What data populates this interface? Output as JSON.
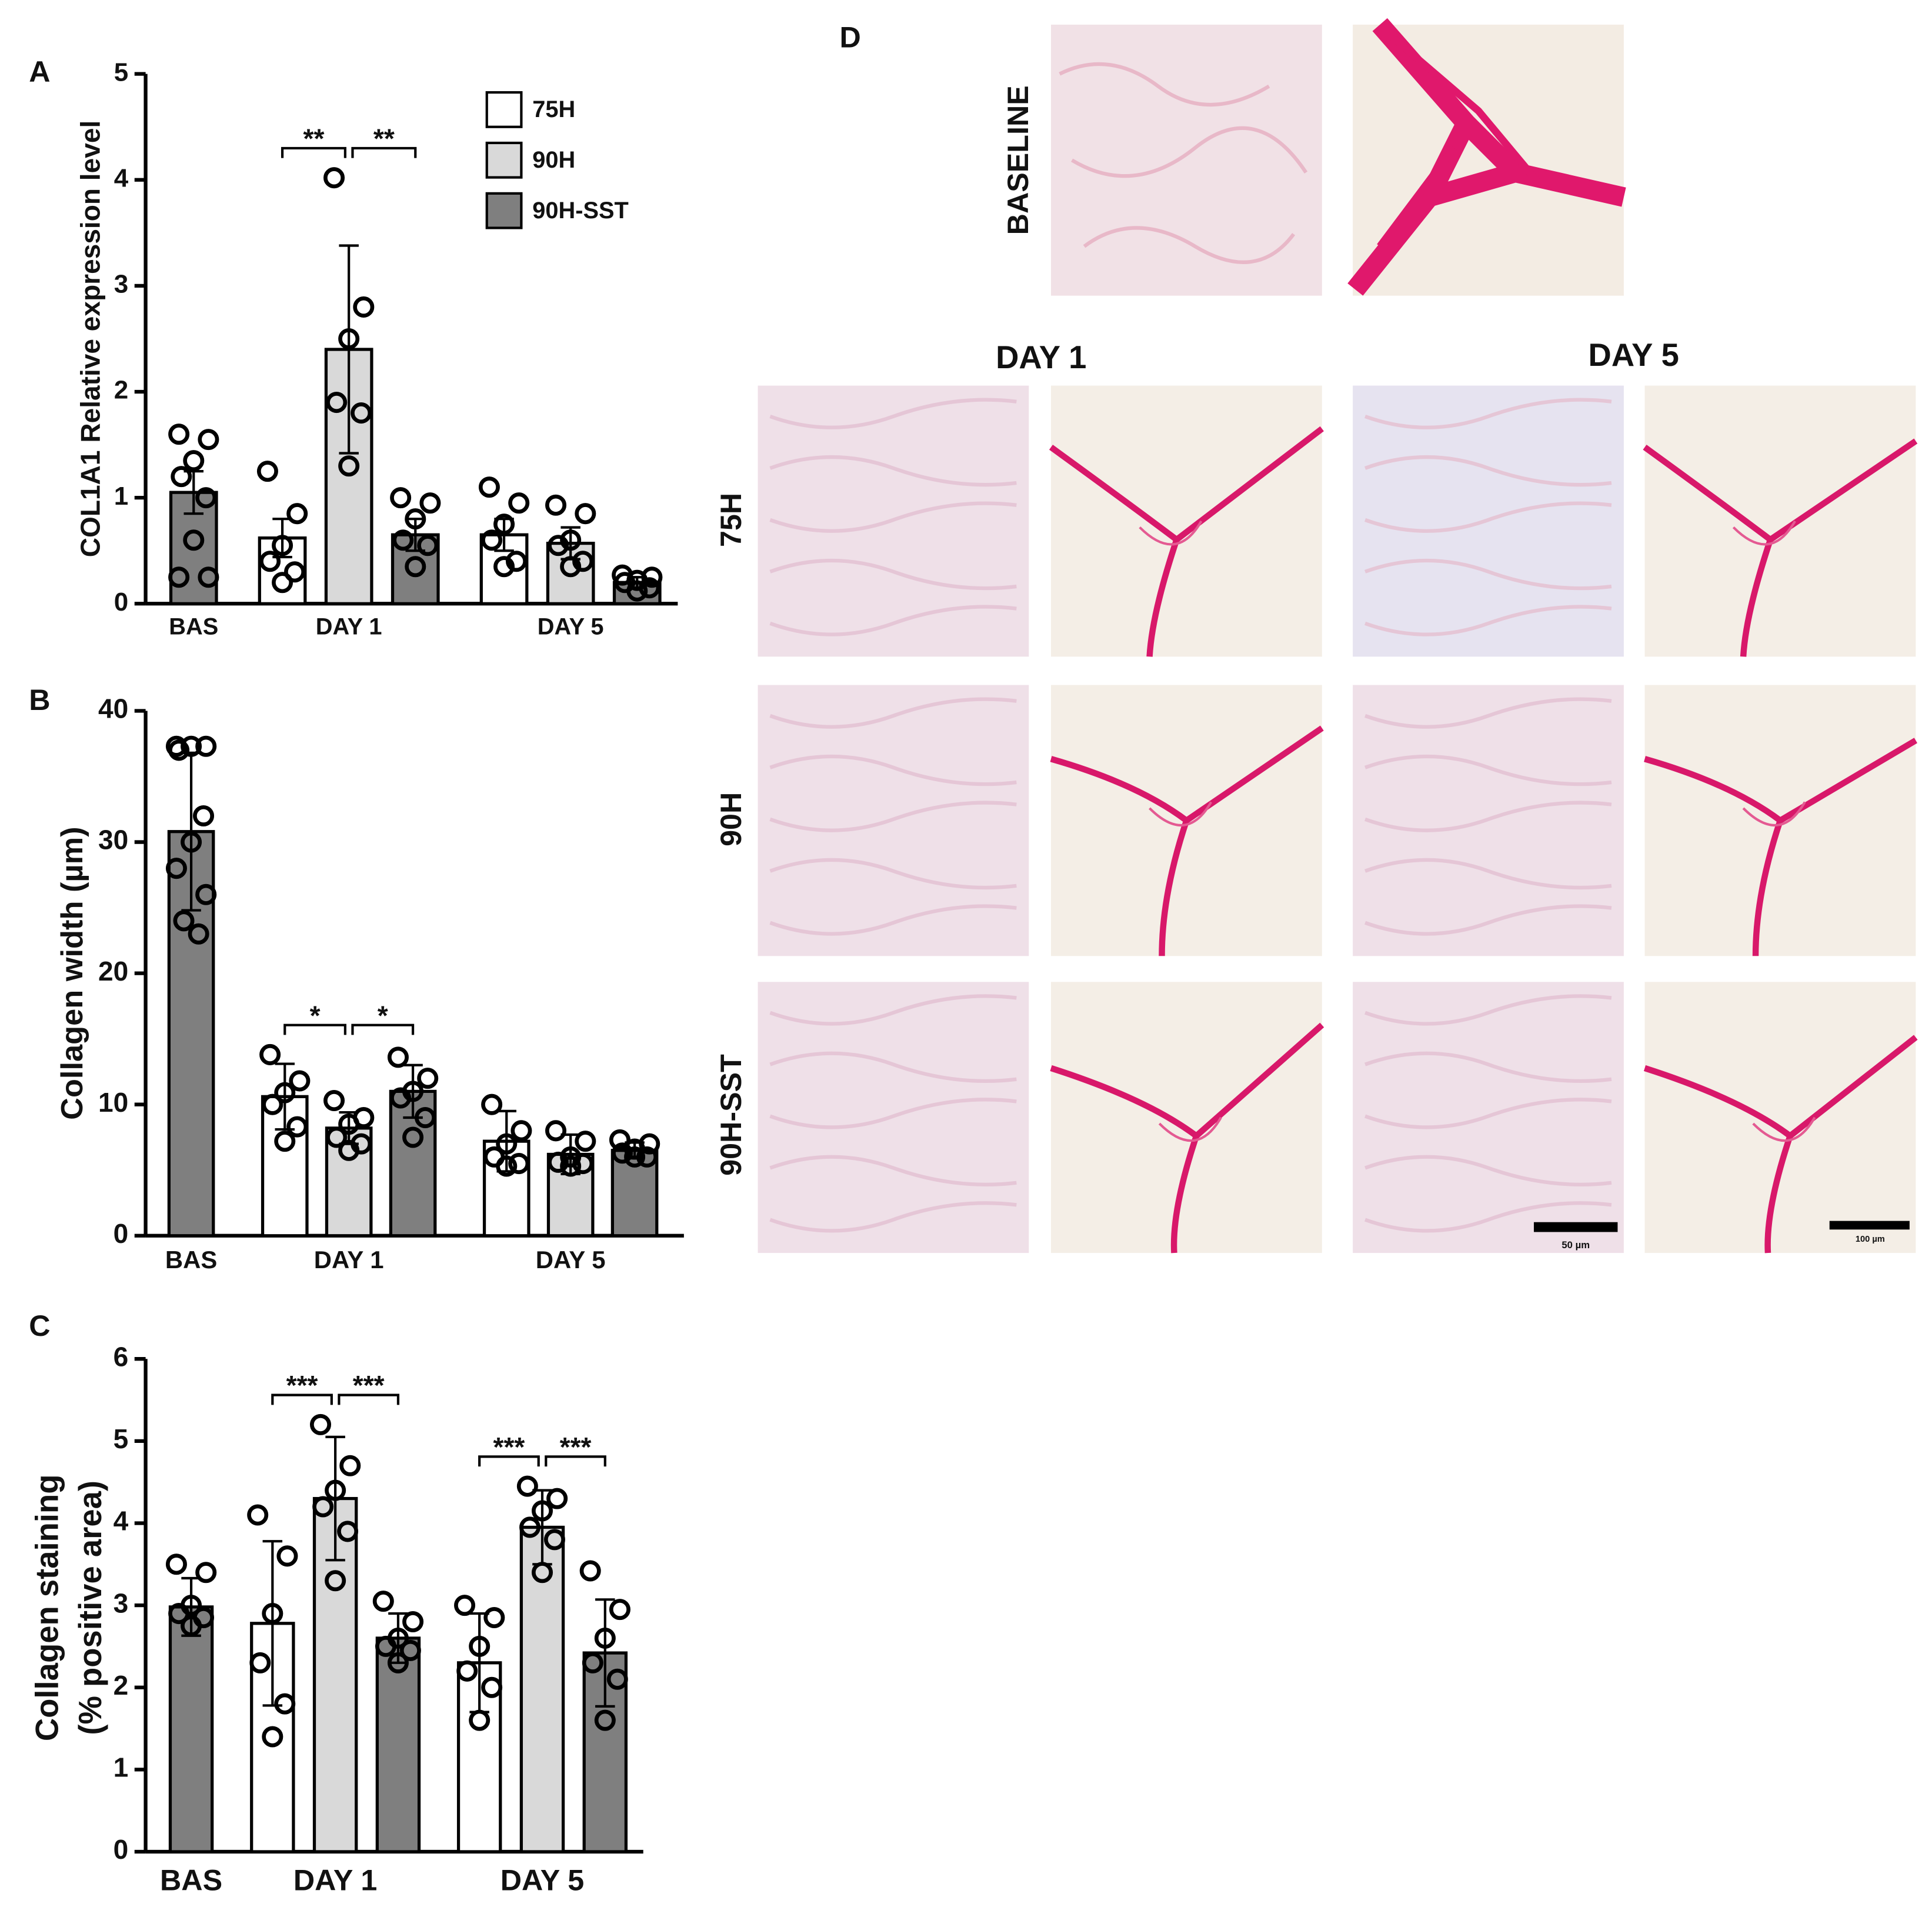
{
  "chart_data": [
    {
      "type": "bar",
      "panel": "A",
      "ylabel": [
        "COL1A1 Relative expression level"
      ],
      "categories": [
        "BAS",
        "DAY 1",
        "DAY 5"
      ],
      "ylim": [
        0,
        5
      ],
      "yticks": [
        0,
        1,
        2,
        3,
        4,
        5
      ],
      "legend": true,
      "series": [
        {
          "name": "75H",
          "color": "#ffffff",
          "values": [
            null,
            0.62,
            0.65
          ],
          "errors": [
            null,
            0.18,
            0.15
          ],
          "points": [
            null,
            [
              1.25,
              0.85,
              0.55,
              0.4,
              0.3,
              0.2
            ],
            [
              1.1,
              0.95,
              0.75,
              0.6,
              0.4,
              0.35
            ]
          ]
        },
        {
          "name": "90H",
          "color": "#d9d9d9",
          "values": [
            null,
            2.4,
            0.57
          ],
          "errors": [
            null,
            0.98,
            0.15
          ],
          "points": [
            null,
            [
              4.02,
              2.8,
              2.5,
              1.9,
              1.8,
              1.3
            ],
            [
              0.93,
              0.85,
              0.6,
              0.55,
              0.4,
              0.35
            ]
          ]
        },
        {
          "name": "90H-SST",
          "color": "#7f7f7f",
          "values": [
            1.05,
            0.65,
            0.2
          ],
          "errors": [
            0.2,
            0.15,
            0.05
          ],
          "points": [
            [
              1.6,
              1.55,
              1.35,
              1.2,
              1.0,
              0.6,
              0.25,
              0.25
            ],
            [
              1.0,
              0.95,
              0.8,
              0.6,
              0.55,
              0.35
            ],
            [
              0.27,
              0.25,
              0.22,
              0.2,
              0.15,
              0.12
            ]
          ]
        }
      ],
      "significance": [
        {
          "label": "**",
          "category": "DAY 1",
          "between": [
            "75H",
            "90H"
          ]
        },
        {
          "label": "**",
          "category": "DAY 1",
          "between": [
            "90H",
            "90H-SST"
          ]
        }
      ]
    },
    {
      "type": "bar",
      "panel": "B",
      "ylabel": [
        "Collagen width (µm)"
      ],
      "categories": [
        "BAS",
        "DAY 1",
        "DAY 5"
      ],
      "ylim": [
        0,
        40
      ],
      "yticks": [
        0,
        10,
        20,
        30,
        40
      ],
      "legend": false,
      "series": [
        {
          "name": "75H",
          "color": "#ffffff",
          "values": [
            null,
            10.6,
            7.2
          ],
          "errors": [
            null,
            2.5,
            2.3
          ],
          "points": [
            null,
            [
              13.8,
              11.8,
              10.9,
              10,
              8.3,
              7.2
            ],
            [
              10,
              8,
              7,
              6,
              5.5,
              5.3
            ]
          ]
        },
        {
          "name": "90H",
          "color": "#d9d9d9",
          "values": [
            null,
            8.2,
            6.2
          ],
          "errors": [
            null,
            1.2,
            1.5
          ],
          "points": [
            null,
            [
              10.3,
              9,
              8.5,
              7.5,
              7,
              6.5
            ],
            [
              8,
              7.2,
              6,
              5.6,
              5.5,
              5.3
            ]
          ]
        },
        {
          "name": "90H-SST",
          "color": "#7f7f7f",
          "values": [
            30.8,
            11,
            6.5
          ],
          "errors": [
            6,
            2,
            0.6
          ],
          "points": [
            [
              37.3,
              37.3,
              37.3,
              37,
              32,
              30,
              28,
              26,
              24,
              23
            ],
            [
              13.6,
              12,
              11,
              10.5,
              9,
              7.5
            ],
            [
              7.3,
              7,
              6.6,
              6.3,
              6,
              6
            ]
          ]
        }
      ],
      "significance": [
        {
          "label": "*",
          "category": "DAY 1",
          "between": [
            "75H",
            "90H"
          ]
        },
        {
          "label": "*",
          "category": "DAY 1",
          "between": [
            "90H",
            "90H-SST"
          ]
        }
      ]
    },
    {
      "type": "bar",
      "panel": "C",
      "ylabel": [
        "Collagen staining",
        "(% positive area)"
      ],
      "categories": [
        "BAS",
        "DAY 1",
        "DAY 5"
      ],
      "ylim": [
        0,
        6
      ],
      "yticks": [
        0,
        1,
        2,
        3,
        4,
        5,
        6
      ],
      "legend": false,
      "series": [
        {
          "name": "75H",
          "color": "#ffffff",
          "values": [
            null,
            2.78,
            2.3
          ],
          "errors": [
            null,
            1.0,
            0.6
          ],
          "points": [
            null,
            [
              4.1,
              3.6,
              2.9,
              2.3,
              1.8,
              1.4
            ],
            [
              3.0,
              2.85,
              2.5,
              2.2,
              2.0,
              1.6
            ]
          ]
        },
        {
          "name": "90H",
          "color": "#d9d9d9",
          "values": [
            null,
            4.3,
            3.95
          ],
          "errors": [
            null,
            0.75,
            0.45
          ],
          "points": [
            null,
            [
              5.2,
              4.7,
              4.4,
              4.2,
              3.9,
              3.3
            ],
            [
              4.45,
              4.3,
              4.15,
              3.95,
              3.8,
              3.4
            ]
          ]
        },
        {
          "name": "90H-SST",
          "color": "#7f7f7f",
          "values": [
            2.98,
            2.6,
            2.42
          ],
          "errors": [
            0.35,
            0.3,
            0.65
          ],
          "points": [
            [
              3.5,
              3.4,
              3.0,
              2.9,
              2.85,
              2.75
            ],
            [
              3.05,
              2.8,
              2.6,
              2.5,
              2.45,
              2.3
            ],
            [
              3.42,
              2.95,
              2.6,
              2.3,
              2.1,
              1.6
            ]
          ]
        }
      ],
      "significance": [
        {
          "label": "***",
          "category": "DAY 1",
          "between": [
            "75H",
            "90H"
          ]
        },
        {
          "label": "***",
          "category": "DAY 1",
          "between": [
            "90H",
            "90H-SST"
          ]
        },
        {
          "label": "***",
          "category": "DAY 5",
          "between": [
            "75H",
            "90H"
          ]
        },
        {
          "label": "***",
          "category": "DAY 5",
          "between": [
            "90H",
            "90H-SST"
          ]
        }
      ]
    }
  ],
  "panel_d": {
    "label": "D",
    "baseline": "BASELINE",
    "columns": [
      "DAY 1",
      "DAY 5"
    ],
    "rows": [
      "75H",
      "90H",
      "90H-SST"
    ],
    "scale_bars": [
      "50 µm",
      "100 µm"
    ]
  }
}
